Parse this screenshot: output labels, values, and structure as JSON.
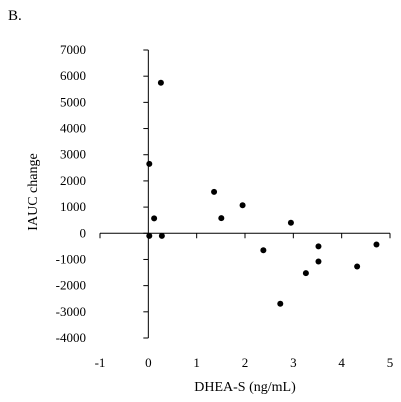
{
  "panel_label": "B.",
  "chart_data": {
    "type": "scatter",
    "title": "",
    "xlabel": "DHEA-S (ng/mL)",
    "ylabel": "IAUC change",
    "xlim": [
      -1,
      5
    ],
    "ylim": [
      -4000,
      7000
    ],
    "x_ticks": [
      -1,
      0,
      1,
      2,
      3,
      4,
      5
    ],
    "y_ticks": [
      -4000,
      -3000,
      -2000,
      -1000,
      0,
      1000,
      2000,
      3000,
      4000,
      5000,
      6000,
      7000
    ],
    "grid": false,
    "legend": "none",
    "point_color": "#000000",
    "points": [
      {
        "x": 0.26,
        "y": 5750
      },
      {
        "x": 0.02,
        "y": 2650
      },
      {
        "x": 1.36,
        "y": 1580
      },
      {
        "x": 1.95,
        "y": 1070
      },
      {
        "x": 0.12,
        "y": 570
      },
      {
        "x": 1.51,
        "y": 580
      },
      {
        "x": 2.95,
        "y": 400
      },
      {
        "x": 0.02,
        "y": -100
      },
      {
        "x": 0.28,
        "y": -100
      },
      {
        "x": 2.38,
        "y": -650
      },
      {
        "x": 3.52,
        "y": -500
      },
      {
        "x": 4.72,
        "y": -430
      },
      {
        "x": 3.52,
        "y": -1080
      },
      {
        "x": 3.26,
        "y": -1520
      },
      {
        "x": 4.32,
        "y": -1270
      },
      {
        "x": 2.73,
        "y": -2690
      }
    ]
  }
}
